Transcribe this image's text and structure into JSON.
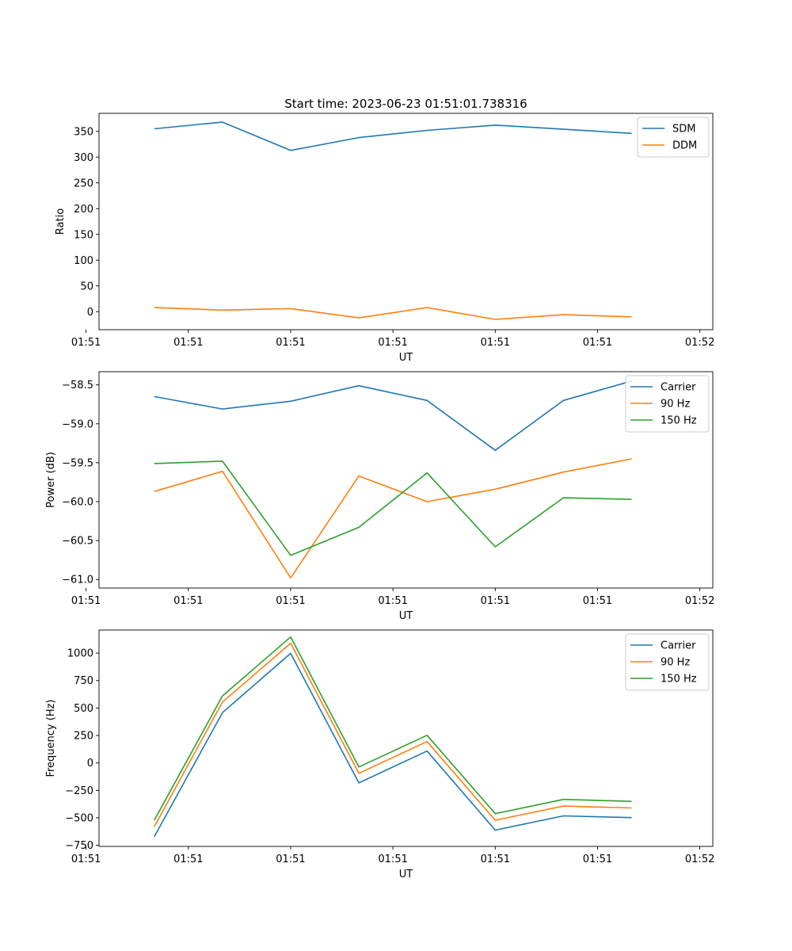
{
  "figure": {
    "title": "Start time: 2023-06-23 01:51:01.738316"
  },
  "colors": {
    "blue": "#1f77b4",
    "orange": "#ff7f0e",
    "green": "#2ca02c"
  },
  "chart_data": [
    {
      "type": "line",
      "title": "Start time: 2023-06-23 01:51:01.738316",
      "xlabel": "UT",
      "ylabel": "Ratio",
      "x": [
        1,
        2,
        3,
        4,
        5,
        6,
        7,
        8
      ],
      "xlim": [
        0.19,
        9.19
      ],
      "x_ticks": [
        {
          "value": 0,
          "label": "01:51"
        },
        {
          "value": 1.5,
          "label": "01:51"
        },
        {
          "value": 3,
          "label": "01:51"
        },
        {
          "value": 4.5,
          "label": "01:51"
        },
        {
          "value": 6,
          "label": "01:51"
        },
        {
          "value": 7.5,
          "label": "01:51"
        },
        {
          "value": 9,
          "label": "01:52"
        }
      ],
      "ylim": [
        -35,
        385
      ],
      "y_ticks": [
        {
          "value": 0,
          "label": "0"
        },
        {
          "value": 50,
          "label": "50"
        },
        {
          "value": 100,
          "label": "100"
        },
        {
          "value": 150,
          "label": "150"
        },
        {
          "value": 200,
          "label": "200"
        },
        {
          "value": 250,
          "label": "250"
        },
        {
          "value": 300,
          "label": "300"
        },
        {
          "value": 350,
          "label": "350"
        }
      ],
      "legend": "top-right",
      "grid": false,
      "series": [
        {
          "name": "SDM",
          "color": "#1f77b4",
          "values": [
            355,
            368,
            313,
            338,
            352,
            362,
            354,
            346
          ]
        },
        {
          "name": "DDM",
          "color": "#ff7f0e",
          "values": [
            8,
            3,
            6,
            -12,
            8,
            -15,
            -6,
            -10
          ]
        }
      ]
    },
    {
      "type": "line",
      "xlabel": "UT",
      "ylabel": "Power (dB)",
      "x": [
        1,
        2,
        3,
        4,
        5,
        6,
        7,
        8
      ],
      "xlim": [
        0.19,
        9.19
      ],
      "x_ticks": [
        {
          "value": 0,
          "label": "01:51"
        },
        {
          "value": 1.5,
          "label": "01:51"
        },
        {
          "value": 3,
          "label": "01:51"
        },
        {
          "value": 4.5,
          "label": "01:51"
        },
        {
          "value": 6,
          "label": "01:51"
        },
        {
          "value": 7.5,
          "label": "01:51"
        },
        {
          "value": 9,
          "label": "01:52"
        }
      ],
      "ylim": [
        -61.11,
        -58.33
      ],
      "y_ticks": [
        {
          "value": -61.0,
          "label": "−61.0"
        },
        {
          "value": -60.5,
          "label": "−60.5"
        },
        {
          "value": -60.0,
          "label": "−60.0"
        },
        {
          "value": -59.5,
          "label": "−59.5"
        },
        {
          "value": -59.0,
          "label": "−59.0"
        },
        {
          "value": -58.5,
          "label": "−58.5"
        }
      ],
      "legend": "top-right",
      "grid": false,
      "series": [
        {
          "name": "Carrier",
          "color": "#1f77b4",
          "values": [
            -58.65,
            -58.81,
            -58.71,
            -58.51,
            -58.7,
            -59.34,
            -58.7,
            -58.45
          ]
        },
        {
          "name": "90 Hz",
          "color": "#ff7f0e",
          "values": [
            -59.87,
            -59.61,
            -60.98,
            -59.67,
            -60.0,
            -59.84,
            -59.62,
            -59.45
          ]
        },
        {
          "name": "150 Hz",
          "color": "#2ca02c",
          "values": [
            -59.51,
            -59.48,
            -60.69,
            -60.33,
            -59.63,
            -60.58,
            -59.95,
            -59.97
          ]
        }
      ]
    },
    {
      "type": "line",
      "xlabel": "UT",
      "ylabel": "Frequency (Hz)",
      "x": [
        1,
        2,
        3,
        4,
        5,
        6,
        7,
        8
      ],
      "xlim": [
        0.19,
        9.19
      ],
      "x_ticks": [
        {
          "value": 0,
          "label": "01:51"
        },
        {
          "value": 1.5,
          "label": "01:51"
        },
        {
          "value": 3,
          "label": "01:51"
        },
        {
          "value": 4.5,
          "label": "01:51"
        },
        {
          "value": 6,
          "label": "01:51"
        },
        {
          "value": 7.5,
          "label": "01:51"
        },
        {
          "value": 9,
          "label": "01:52"
        }
      ],
      "ylim": [
        -760,
        1210
      ],
      "y_ticks": [
        {
          "value": -750,
          "label": "−750"
        },
        {
          "value": -500,
          "label": "−500"
        },
        {
          "value": -250,
          "label": "−250"
        },
        {
          "value": 0,
          "label": "0"
        },
        {
          "value": 250,
          "label": "250"
        },
        {
          "value": 500,
          "label": "500"
        },
        {
          "value": 750,
          "label": "750"
        },
        {
          "value": 1000,
          "label": "1000"
        }
      ],
      "legend": "top-right",
      "grid": false,
      "series": [
        {
          "name": "Carrier",
          "color": "#1f77b4",
          "values": [
            -672,
            458,
            998,
            -182,
            108,
            -612,
            -482,
            -498
          ]
        },
        {
          "name": "90 Hz",
          "color": "#ff7f0e",
          "values": [
            -580,
            555,
            1090,
            -95,
            195,
            -522,
            -393,
            -410
          ]
        },
        {
          "name": "150 Hz",
          "color": "#2ca02c",
          "values": [
            -522,
            610,
            1147,
            -37,
            252,
            -462,
            -332,
            -350
          ]
        }
      ]
    }
  ]
}
